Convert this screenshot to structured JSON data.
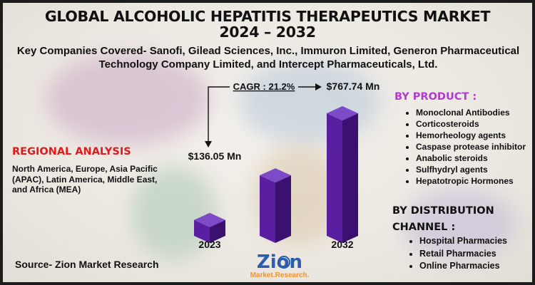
{
  "title": "GLOBAL ALCOHOLIC HEPATITIS THERAPEUTICS MARKET",
  "years_span": "2024 – 2032",
  "companies": "Key Companies Covered- Sanofi, Gilead Sciences, Inc., Immuron Limited, Generon Pharmaceutical Technology Company Limited, and Intercept Pharmaceuticals, Ltd.",
  "regional": {
    "heading": "REGIONAL ANALYSIS",
    "text": "North America, Europe, Asia Pacific (APAC), Latin America, Middle East, and Africa (MEA)"
  },
  "source": "Source- Zion Market Research",
  "by_product": {
    "heading": "BY PRODUCT :",
    "items": [
      "Monoclonal Antibodies",
      "Corticosteroids",
      "Hemorheology agents",
      "Caspase protease inhibitor",
      "Anabolic steroids",
      "Sulfhydryl agents",
      "Hepatotropic Hormones"
    ]
  },
  "by_distribution": {
    "heading": "BY DISTRIBUTION CHANNEL :",
    "items": [
      "Hospital Pharmacies",
      "Retail  Pharmacies",
      "Online Pharmacies"
    ]
  },
  "logo": {
    "word": "Zion",
    "tagline": "Market.Research."
  },
  "colors": {
    "bar_front": "#5a1fa0",
    "bar_side": "#3a1170",
    "bar_top": "#7d4bc8",
    "region_heading": "#e01b1b",
    "product_heading": "#b23ad1",
    "logo_blue": "#2b5fae",
    "logo_orange": "#f2942b"
  },
  "chart_data": {
    "type": "bar",
    "categories": [
      "2023",
      "",
      "2032"
    ],
    "values": [
      136.05,
      400,
      767.74
    ],
    "data_labels": [
      "$136.05 Mn",
      "",
      "$767.74 Mn"
    ],
    "cagr_label": "CAGR : 21.2%",
    "title": "",
    "xlabel": "",
    "ylabel": ""
  }
}
